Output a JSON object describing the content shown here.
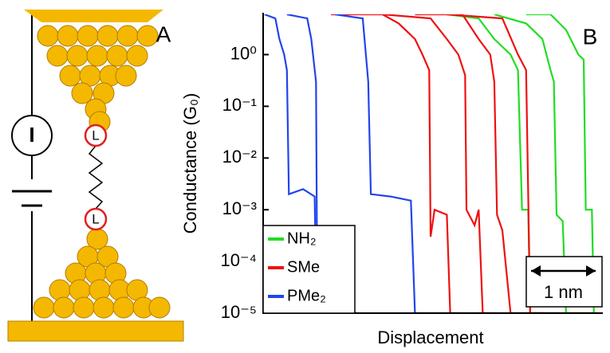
{
  "panel_a": {
    "label": "A",
    "current": "I",
    "linker": [
      "L",
      "L"
    ]
  },
  "chart_data": {
    "type": "line",
    "panel_label": "B",
    "y_label": "Conductance (G₀)",
    "x_label": "Displacement",
    "log_y": true,
    "xlim": [
      0,
      5
    ],
    "ylim": [
      1e-05,
      6
    ],
    "yticks": [
      {
        "value": 1,
        "label": "10⁰"
      },
      {
        "value": 0.1,
        "label": "10⁻¹"
      },
      {
        "value": 0.01,
        "label": "10⁻²"
      },
      {
        "value": 0.001,
        "label": "10⁻³"
      },
      {
        "value": 0.0001,
        "label": "10⁻⁴"
      },
      {
        "value": 1e-05,
        "label": "10⁻⁵"
      }
    ],
    "legend": "lower left",
    "scale_bar": {
      "length": 1,
      "label": "1 nm"
    },
    "series": [
      {
        "name": "NH₂",
        "color": "#22dd22",
        "traces": [
          {
            "x": [
              2.71,
              3.18,
              3.41,
              3.65,
              3.76,
              3.82,
              3.91,
              3.94,
              4.82
            ],
            "values": [
              6,
              5,
              2,
              1,
              0.5,
              0.001,
              0.001,
              1e-05,
              1e-05
            ]
          },
          {
            "x": [
              3.41,
              3.88,
              4.12,
              4.24,
              4.29,
              4.33,
              4.42,
              4.47,
              4.94
            ],
            "values": [
              6,
              4,
              2,
              0.5,
              0.3,
              0.0008,
              0.0006,
              1e-05,
              1e-05
            ]
          },
          {
            "x": [
              3.88,
              4.24,
              4.47,
              4.65,
              4.73,
              4.76,
              4.85,
              4.88,
              5.0
            ],
            "values": [
              6,
              6,
              3,
              1,
              0.8,
              0.001,
              0.001,
              1e-05,
              1e-05
            ]
          }
        ]
      },
      {
        "name": "SMe",
        "color": "#ee1111",
        "traces": [
          {
            "x": [
              1.0,
              1.76,
              2.0,
              2.24,
              2.35,
              2.45,
              2.47,
              2.53,
              2.71,
              2.76,
              3.41
            ],
            "values": [
              6,
              6,
              4,
              2,
              1,
              0.5,
              0.0003,
              0.001,
              0.0008,
              1e-05,
              1e-05
            ]
          },
          {
            "x": [
              1.76,
              2.47,
              2.71,
              2.88,
              2.98,
              3.0,
              3.12,
              3.18,
              3.24,
              4.12
            ],
            "values": [
              6,
              5,
              2,
              1,
              0.4,
              0.001,
              0.0005,
              0.001,
              1e-05,
              1e-05
            ]
          },
          {
            "x": [
              2.24,
              2.94,
              3.18,
              3.35,
              3.41,
              3.45,
              3.53,
              3.65,
              4.35
            ],
            "values": [
              6,
              6,
              2,
              1,
              0.3,
              0.0008,
              0.0004,
              1e-05,
              1e-05
            ]
          },
          {
            "x": [
              2.71,
              3.53,
              3.76,
              3.88,
              3.94,
              4.94
            ],
            "values": [
              6,
              5,
              1,
              0.5,
              1e-05,
              1e-05
            ]
          }
        ]
      },
      {
        "name": "PMe₂",
        "color": "#2244ee",
        "traces": [
          {
            "x": [
              0.02,
              0.18,
              0.24,
              0.31,
              0.35,
              0.38,
              0.59,
              0.76,
              0.79,
              1.29
            ],
            "values": [
              6,
              5,
              2,
              1,
              0.5,
              0.002,
              0.0025,
              0.0018,
              1e-05,
              1e-05
            ]
          },
          {
            "x": [
              0.35,
              0.65,
              0.71,
              0.78,
              0.8,
              1.41
            ],
            "values": [
              6,
              5,
              2,
              0.3,
              1e-05,
              1e-05
            ]
          },
          {
            "x": [
              1.06,
              1.47,
              1.55,
              1.59,
              1.88,
              2.18,
              2.24,
              2.88
            ],
            "values": [
              6,
              5,
              0.3,
              0.002,
              0.0018,
              0.0015,
              1e-05,
              1e-05
            ]
          }
        ]
      }
    ]
  }
}
